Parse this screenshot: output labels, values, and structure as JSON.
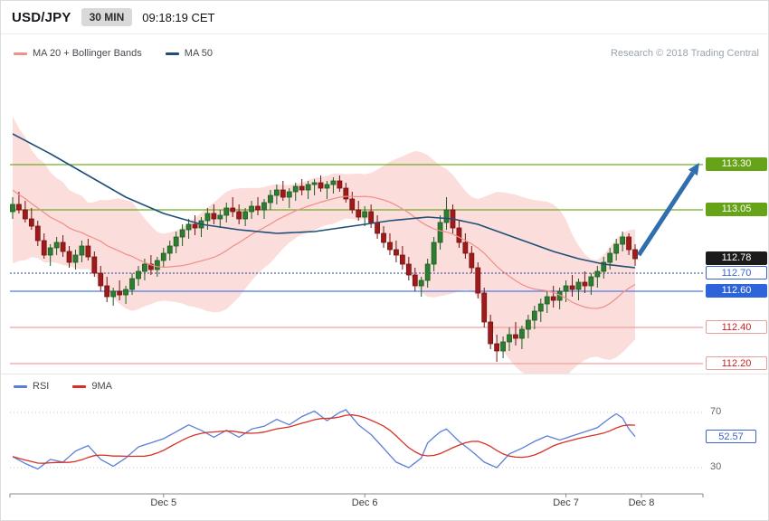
{
  "header": {
    "symbol": "USD/JPY",
    "timeframe": "30 MIN",
    "time": "09:18:19 CET"
  },
  "branding": {
    "research": "Research © 2018 Trading Central"
  },
  "legend_main": [
    {
      "label": "MA 20 + Bollinger Bands",
      "color": "#f0908a"
    },
    {
      "label": "MA 50",
      "color": "#1f4e79"
    }
  ],
  "legend_rsi": [
    {
      "label": "RSI",
      "color": "#5b7fd8"
    },
    {
      "label": "9MA",
      "color": "#d93025"
    }
  ],
  "chart_data": {
    "type": "candlestick",
    "symbol": "USD/JPY",
    "interval": "30 min",
    "colors": {
      "up_fill": "#2e7d32",
      "up_stroke": "#1b5e20",
      "down_fill": "#9e1b1b",
      "down_stroke": "#771010",
      "band_fill": "rgba(244,166,160,0.38)",
      "ma20": "#ef8f88",
      "ma50": "#1f4e79",
      "rsi_line": "#5b7fd8",
      "rsi_ma": "#d93025",
      "arrow": "#2f6fad",
      "axis": "#8a8a8a"
    },
    "levels": [
      {
        "label": "113.30",
        "price": 113.3,
        "kind": "resistance",
        "style": "solid",
        "line_color": "#74ad27",
        "label_bg": "#67a318",
        "label_text": "#ffffff",
        "border": ""
      },
      {
        "label": "113.05",
        "price": 113.05,
        "kind": "resistance",
        "style": "solid",
        "line_color": "#74ad27",
        "label_bg": "#67a318",
        "label_text": "#ffffff",
        "border": ""
      },
      {
        "label": "112.78",
        "price": 112.78,
        "kind": "last",
        "style": "none",
        "line_color": "",
        "label_bg": "#1b1b1b",
        "label_text": "#ffffff",
        "border": ""
      },
      {
        "label": "112.70",
        "price": 112.7,
        "kind": "pivot",
        "style": "dotted",
        "line_color": "#2b4590",
        "label_bg": "#ffffff",
        "label_text": "#3b63cc",
        "border": "#3b63cc"
      },
      {
        "label": "112.60",
        "price": 112.6,
        "kind": "support",
        "style": "solid",
        "line_color": "#4f7be0",
        "label_bg": "#2d64d9",
        "label_text": "#ffffff",
        "border": ""
      },
      {
        "label": "112.40",
        "price": 112.4,
        "kind": "support",
        "style": "solid",
        "line_color": "#f0a29c",
        "label_bg": "#ffffff",
        "label_text": "#cc2020",
        "border": "#e5a19b"
      },
      {
        "label": "112.20",
        "price": 112.2,
        "kind": "support",
        "style": "solid",
        "line_color": "#f0a29c",
        "label_bg": "#ffffff",
        "label_text": "#cc2020",
        "border": "#e5a19b"
      }
    ],
    "x_ticks": [
      {
        "label": "Dec 5",
        "index": 24
      },
      {
        "label": "Dec 6",
        "index": 56
      },
      {
        "label": "Dec 7",
        "index": 88
      },
      {
        "label": "Dec 8",
        "index": 100
      }
    ],
    "candles": [
      [
        113.04,
        113.12,
        113.0,
        113.08
      ],
      [
        113.08,
        113.15,
        113.03,
        113.05
      ],
      [
        113.05,
        113.1,
        112.98,
        113.0
      ],
      [
        113.0,
        113.06,
        112.94,
        112.96
      ],
      [
        112.96,
        112.99,
        112.85,
        112.88
      ],
      [
        112.88,
        112.92,
        112.78,
        112.8
      ],
      [
        112.8,
        112.86,
        112.74,
        112.84
      ],
      [
        112.84,
        112.9,
        112.8,
        112.87
      ],
      [
        112.87,
        112.91,
        112.79,
        112.82
      ],
      [
        112.82,
        112.85,
        112.73,
        112.76
      ],
      [
        112.76,
        112.83,
        112.72,
        112.8
      ],
      [
        112.8,
        112.88,
        112.76,
        112.85
      ],
      [
        112.85,
        112.89,
        112.77,
        112.79
      ],
      [
        112.79,
        112.82,
        112.68,
        112.7
      ],
      [
        112.7,
        112.74,
        112.6,
        112.63
      ],
      [
        112.63,
        112.68,
        112.54,
        112.57
      ],
      [
        112.57,
        112.62,
        112.52,
        112.6
      ],
      [
        112.6,
        112.66,
        112.55,
        112.58
      ],
      [
        112.58,
        112.63,
        112.53,
        112.61
      ],
      [
        112.61,
        112.7,
        112.58,
        112.67
      ],
      [
        112.67,
        112.74,
        112.63,
        112.71
      ],
      [
        112.71,
        112.78,
        112.66,
        112.75
      ],
      [
        112.75,
        112.8,
        112.69,
        112.72
      ],
      [
        112.72,
        112.79,
        112.68,
        112.77
      ],
      [
        112.77,
        112.84,
        112.73,
        112.81
      ],
      [
        112.81,
        112.88,
        112.77,
        112.85
      ],
      [
        112.85,
        112.93,
        112.81,
        112.9
      ],
      [
        112.9,
        112.97,
        112.85,
        112.94
      ],
      [
        112.94,
        113.0,
        112.89,
        112.97
      ],
      [
        112.97,
        113.02,
        112.91,
        112.95
      ],
      [
        112.95,
        113.01,
        112.9,
        112.99
      ],
      [
        112.99,
        113.06,
        112.94,
        113.03
      ],
      [
        113.03,
        113.08,
        112.97,
        113.0
      ],
      [
        113.0,
        113.05,
        112.95,
        113.02
      ],
      [
        113.02,
        113.09,
        112.98,
        113.06
      ],
      [
        113.06,
        113.12,
        113.01,
        113.04
      ],
      [
        113.04,
        113.08,
        112.97,
        113.0
      ],
      [
        113.0,
        113.06,
        112.96,
        113.04
      ],
      [
        113.04,
        113.1,
        113.0,
        113.07
      ],
      [
        113.07,
        113.12,
        113.02,
        113.05
      ],
      [
        113.05,
        113.11,
        113.0,
        113.09
      ],
      [
        113.09,
        113.16,
        113.05,
        113.13
      ],
      [
        113.13,
        113.19,
        113.08,
        113.16
      ],
      [
        113.16,
        113.21,
        113.1,
        113.12
      ],
      [
        113.12,
        113.17,
        113.06,
        113.15
      ],
      [
        113.15,
        113.2,
        113.1,
        113.18
      ],
      [
        113.18,
        113.22,
        113.13,
        113.16
      ],
      [
        113.16,
        113.21,
        113.11,
        113.19
      ],
      [
        113.19,
        113.22,
        113.13,
        113.2
      ],
      [
        113.2,
        113.24,
        113.15,
        113.17
      ],
      [
        113.17,
        113.21,
        113.11,
        113.19
      ],
      [
        113.19,
        113.23,
        113.14,
        113.21
      ],
      [
        113.21,
        113.24,
        113.15,
        113.17
      ],
      [
        113.17,
        113.2,
        113.09,
        113.11
      ],
      [
        113.11,
        113.15,
        113.03,
        113.05
      ],
      [
        113.05,
        113.1,
        112.99,
        113.01
      ],
      [
        113.01,
        113.07,
        112.96,
        113.04
      ],
      [
        113.04,
        113.08,
        112.95,
        112.98
      ],
      [
        112.98,
        113.02,
        112.89,
        112.92
      ],
      [
        112.92,
        112.96,
        112.84,
        112.87
      ],
      [
        112.87,
        112.92,
        112.8,
        112.83
      ],
      [
        112.83,
        112.88,
        112.76,
        112.8
      ],
      [
        112.8,
        112.85,
        112.72,
        112.75
      ],
      [
        112.75,
        112.79,
        112.66,
        112.69
      ],
      [
        112.69,
        112.73,
        112.6,
        112.63
      ],
      [
        112.63,
        112.68,
        112.57,
        112.66
      ],
      [
        112.66,
        112.78,
        112.62,
        112.75
      ],
      [
        112.75,
        112.9,
        112.71,
        112.87
      ],
      [
        112.87,
        113.02,
        112.83,
        112.98
      ],
      [
        112.98,
        113.12,
        112.94,
        113.05
      ],
      [
        113.05,
        113.08,
        112.92,
        112.95
      ],
      [
        112.95,
        112.99,
        112.84,
        112.87
      ],
      [
        112.87,
        112.92,
        112.78,
        112.81
      ],
      [
        112.81,
        112.85,
        112.7,
        112.73
      ],
      [
        112.73,
        112.76,
        112.56,
        112.59
      ],
      [
        112.59,
        112.62,
        112.4,
        112.43
      ],
      [
        112.43,
        112.47,
        112.28,
        112.31
      ],
      [
        112.31,
        112.36,
        112.21,
        112.27
      ],
      [
        112.27,
        112.35,
        112.23,
        112.32
      ],
      [
        112.32,
        112.4,
        112.27,
        112.36
      ],
      [
        112.36,
        112.43,
        112.3,
        112.34
      ],
      [
        112.34,
        112.41,
        112.28,
        112.39
      ],
      [
        112.39,
        112.47,
        112.34,
        112.44
      ],
      [
        112.44,
        112.52,
        112.39,
        112.49
      ],
      [
        112.49,
        112.56,
        112.43,
        112.53
      ],
      [
        112.53,
        112.6,
        112.48,
        112.57
      ],
      [
        112.57,
        112.63,
        112.51,
        112.55
      ],
      [
        112.55,
        112.62,
        112.5,
        112.6
      ],
      [
        112.6,
        112.66,
        112.54,
        112.63
      ],
      [
        112.63,
        112.69,
        112.57,
        112.61
      ],
      [
        112.61,
        112.67,
        112.55,
        112.65
      ],
      [
        112.65,
        112.71,
        112.59,
        112.63
      ],
      [
        112.63,
        112.7,
        112.58,
        112.68
      ],
      [
        112.68,
        112.74,
        112.62,
        112.71
      ],
      [
        112.71,
        112.79,
        112.67,
        112.76
      ],
      [
        112.76,
        112.84,
        112.72,
        112.81
      ],
      [
        112.81,
        112.89,
        112.77,
        112.86
      ],
      [
        112.86,
        112.93,
        112.82,
        112.9
      ],
      [
        112.9,
        112.92,
        112.8,
        112.83
      ],
      [
        112.83,
        112.86,
        112.74,
        112.78
      ]
    ],
    "pre_closes": [
      113.55,
      113.45,
      113.5,
      113.38,
      113.3,
      113.35,
      113.22,
      113.18,
      113.25,
      113.1,
      113.05,
      113.15,
      112.98,
      112.95,
      113.05,
      112.92,
      112.88,
      112.95,
      112.9
    ],
    "bollinger_period": 20,
    "bollinger_mult": 2,
    "ma50_keypoints": [
      [
        0,
        113.47
      ],
      [
        6,
        113.36
      ],
      [
        12,
        113.24
      ],
      [
        18,
        113.12
      ],
      [
        24,
        113.03
      ],
      [
        30,
        112.97
      ],
      [
        36,
        112.94
      ],
      [
        42,
        112.92
      ],
      [
        48,
        112.93
      ],
      [
        54,
        112.96
      ],
      [
        60,
        112.99
      ],
      [
        66,
        113.01
      ],
      [
        70,
        113.0
      ],
      [
        74,
        112.97
      ],
      [
        78,
        112.92
      ],
      [
        82,
        112.87
      ],
      [
        86,
        112.82
      ],
      [
        90,
        112.78
      ],
      [
        94,
        112.75
      ],
      [
        99,
        112.73
      ]
    ],
    "rsi": {
      "current": 52.57,
      "current_label": "52.57",
      "levels": [
        {
          "value": 70,
          "label": "70"
        },
        {
          "value": 30,
          "label": "30"
        }
      ],
      "ma_period": 9,
      "keypoints": [
        [
          0,
          38
        ],
        [
          2,
          33
        ],
        [
          4,
          29
        ],
        [
          6,
          36
        ],
        [
          8,
          34
        ],
        [
          10,
          42
        ],
        [
          12,
          46
        ],
        [
          14,
          36
        ],
        [
          16,
          31
        ],
        [
          18,
          37
        ],
        [
          20,
          45
        ],
        [
          22,
          48
        ],
        [
          24,
          51
        ],
        [
          26,
          56
        ],
        [
          28,
          61
        ],
        [
          30,
          57
        ],
        [
          32,
          52
        ],
        [
          34,
          57
        ],
        [
          36,
          52
        ],
        [
          38,
          58
        ],
        [
          40,
          60
        ],
        [
          42,
          65
        ],
        [
          44,
          61
        ],
        [
          46,
          67
        ],
        [
          48,
          71
        ],
        [
          50,
          64
        ],
        [
          52,
          70
        ],
        [
          53,
          72
        ],
        [
          55,
          61
        ],
        [
          57,
          54
        ],
        [
          59,
          44
        ],
        [
          61,
          34
        ],
        [
          63,
          30
        ],
        [
          65,
          37
        ],
        [
          66,
          48
        ],
        [
          68,
          56
        ],
        [
          69,
          58
        ],
        [
          71,
          49
        ],
        [
          73,
          42
        ],
        [
          75,
          34
        ],
        [
          77,
          30
        ],
        [
          79,
          40
        ],
        [
          81,
          44
        ],
        [
          83,
          49
        ],
        [
          85,
          53
        ],
        [
          87,
          50
        ],
        [
          89,
          53
        ],
        [
          91,
          56
        ],
        [
          93,
          59
        ],
        [
          95,
          66
        ],
        [
          96,
          69
        ],
        [
          97,
          66
        ],
        [
          98,
          58
        ],
        [
          99,
          52.57
        ]
      ]
    },
    "arrow": {
      "from_index": 99,
      "from_price": 112.8,
      "to_price": 113.32,
      "color": "#2f6fad"
    }
  }
}
